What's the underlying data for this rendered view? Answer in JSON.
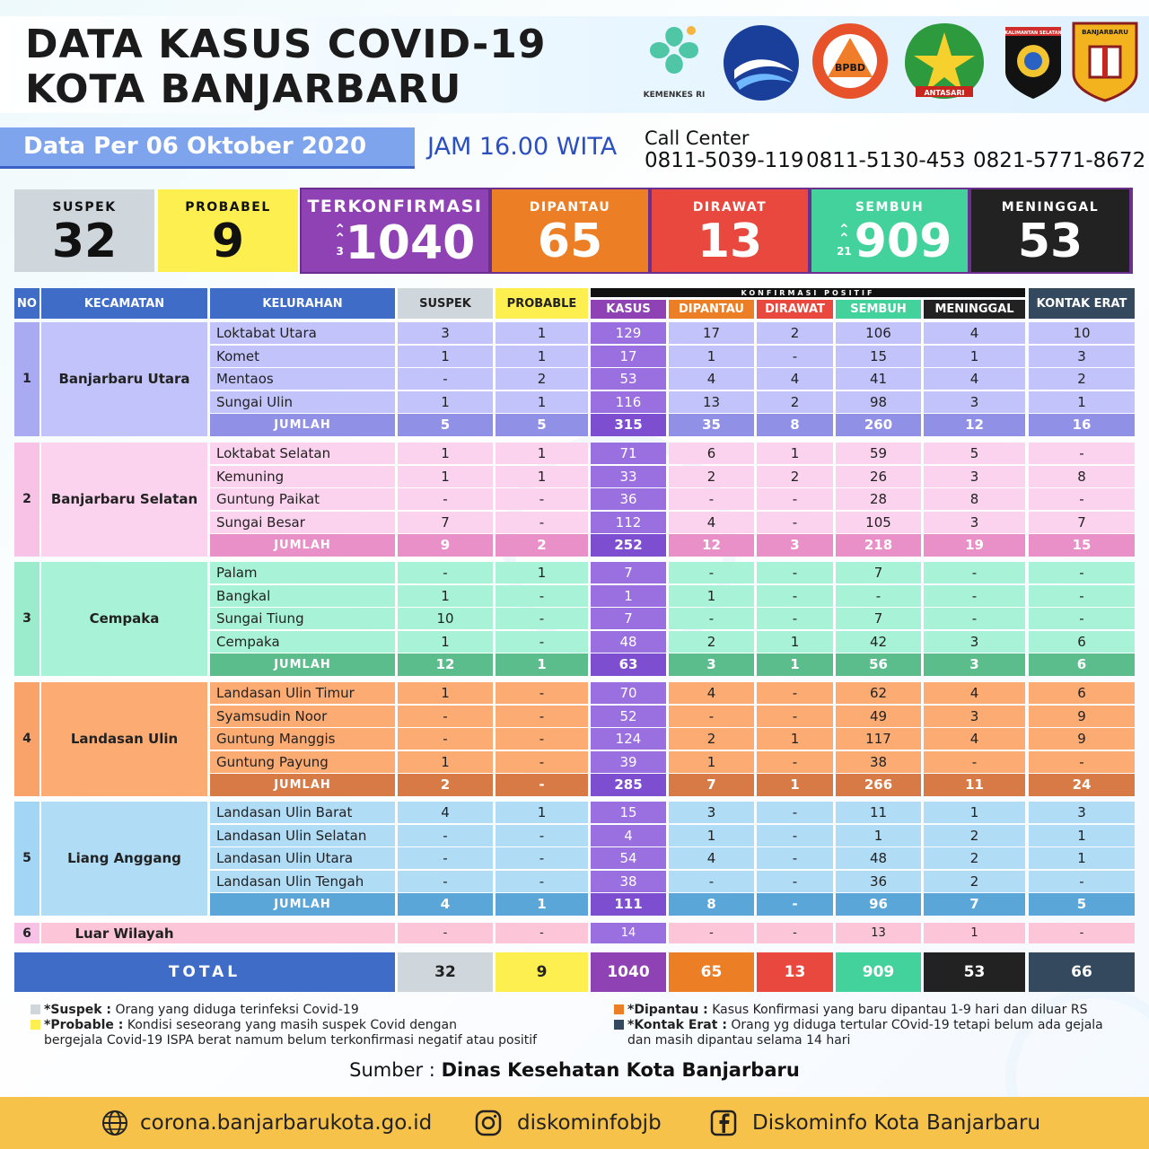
{
  "header": {
    "title_line1": "DATA KASUS COVID-19",
    "title_line2": "KOTA BANJARBARU",
    "logos": [
      {
        "name": "kemenkes-logo",
        "text": "KEMENKES RI"
      },
      {
        "name": "kominfo-logo",
        "text": ""
      },
      {
        "name": "bpbd-logo",
        "text": "BPBD"
      },
      {
        "name": "antasari-logo",
        "text": "ANTASARI"
      },
      {
        "name": "polda-logo",
        "text": "KALIMANTAN SELATAN"
      },
      {
        "name": "banjarbaru-logo",
        "text": "BANJARBARU"
      }
    ],
    "date": "Data Per 06 Oktober 2020",
    "time": "JAM 16.00 WITA",
    "call_center_label": "Call Center",
    "phones": [
      "0811-5039-119",
      "0811-5130-453",
      "0821-5771-8672"
    ]
  },
  "summary": [
    {
      "label": "SUSPEK",
      "value": "32",
      "bg": "#cfd6dc",
      "fg": "#111111",
      "up": ""
    },
    {
      "label": "PROBABEL",
      "value": "9",
      "bg": "#fcef4f",
      "fg": "#111111",
      "up": ""
    },
    {
      "label": "TERKONFIRMASI",
      "value": "1040",
      "bg": "#8e42b3",
      "fg": "#ffffff",
      "up": "3"
    },
    {
      "label": "DIPANTAU",
      "value": "65",
      "bg": "#ec7e25",
      "fg": "#ffffff",
      "up": ""
    },
    {
      "label": "DIRAWAT",
      "value": "13",
      "bg": "#e9483e",
      "fg": "#ffffff",
      "up": ""
    },
    {
      "label": "SEMBUH",
      "value": "909",
      "bg": "#43d29c",
      "fg": "#ffffff",
      "up": "21"
    },
    {
      "label": "MENINGGAL",
      "value": "53",
      "bg": "#222222",
      "fg": "#ffffff",
      "up": ""
    }
  ],
  "table": {
    "headers": {
      "no": "NO",
      "kecamatan": "KECAMATAN",
      "kelurahan": "KELURAHAN",
      "suspek": "SUSPEK",
      "probable": "PROBABLE",
      "group": "KONFIRMASI POSITIF",
      "kasus": "KASUS",
      "dipantau": "DIPANTAU",
      "dirawat": "DIRAWAT",
      "sembuh": "SEMBUH",
      "meninggal": "MENINGGAL",
      "kontak": "KONTAK ERAT"
    },
    "jumlah_label": "JUMLAH",
    "districts": [
      {
        "no": "1",
        "name": "Banjarbaru Utara",
        "colors": {
          "row": "#c2c3fb",
          "num": "#a9aaf2",
          "total": "#8f90e6",
          "kasus": "#9a6fe0",
          "kasustotal": "#7e4ed0"
        },
        "rows": [
          [
            "Loktabat Utara",
            "3",
            "1",
            "129",
            "17",
            "2",
            "106",
            "4",
            "10"
          ],
          [
            "Komet",
            "1",
            "1",
            "17",
            "1",
            "-",
            "15",
            "1",
            "3"
          ],
          [
            "Mentaos",
            "-",
            "2",
            "53",
            "4",
            "4",
            "41",
            "4",
            "2"
          ],
          [
            "Sungai Ulin",
            "1",
            "1",
            "116",
            "13",
            "2",
            "98",
            "3",
            "1"
          ]
        ],
        "total": [
          "5",
          "5",
          "315",
          "35",
          "8",
          "260",
          "12",
          "16"
        ]
      },
      {
        "no": "2",
        "name": "Banjarbaru Selatan",
        "colors": {
          "row": "#fcd3ee",
          "num": "#f8c2e6",
          "total": "#e990c9",
          "kasus": "#9a6fe0",
          "kasustotal": "#7e4ed0"
        },
        "rows": [
          [
            "Loktabat Selatan",
            "1",
            "1",
            "71",
            "6",
            "1",
            "59",
            "5",
            "-"
          ],
          [
            "Kemuning",
            "1",
            "1",
            "33",
            "2",
            "2",
            "26",
            "3",
            "8"
          ],
          [
            "Guntung Paikat",
            "-",
            "-",
            "36",
            "-",
            "-",
            "28",
            "8",
            "-"
          ],
          [
            "Sungai Besar",
            "7",
            "-",
            "112",
            "4",
            "-",
            "105",
            "3",
            "7"
          ]
        ],
        "total": [
          "9",
          "2",
          "252",
          "12",
          "3",
          "218",
          "19",
          "15"
        ]
      },
      {
        "no": "3",
        "name": "Cempaka",
        "colors": {
          "row": "#a8f3d8",
          "num": "#9aeccd",
          "total": "#5cbd8c",
          "kasus": "#9a6fe0",
          "kasustotal": "#7e4ed0"
        },
        "rows": [
          [
            "Palam",
            "-",
            "1",
            "7",
            "-",
            "-",
            "7",
            "-",
            "-"
          ],
          [
            "Bangkal",
            "1",
            "-",
            "1",
            "1",
            "-",
            "-",
            "-",
            "-"
          ],
          [
            "Sungai Tiung",
            "10",
            "-",
            "7",
            "-",
            "-",
            "7",
            "-",
            "-"
          ],
          [
            "Cempaka",
            "1",
            "-",
            "48",
            "2",
            "1",
            "42",
            "3",
            "6"
          ]
        ],
        "total": [
          "12",
          "1",
          "63",
          "3",
          "1",
          "56",
          "3",
          "6"
        ]
      },
      {
        "no": "4",
        "name": "Landasan Ulin",
        "colors": {
          "row": "#fcab73",
          "num": "#f9a36a",
          "total": "#d77a45",
          "kasus": "#9a6fe0",
          "kasustotal": "#7e4ed0"
        },
        "rows": [
          [
            "Landasan Ulin Timur",
            "1",
            "-",
            "70",
            "4",
            "-",
            "62",
            "4",
            "6"
          ],
          [
            "Syamsudin Noor",
            "-",
            "-",
            "52",
            "-",
            "-",
            "49",
            "3",
            "9"
          ],
          [
            "Guntung Manggis",
            "-",
            "-",
            "124",
            "2",
            "1",
            "117",
            "4",
            "9"
          ],
          [
            "Guntung Payung",
            "1",
            "-",
            "39",
            "1",
            "-",
            "38",
            "-",
            "-"
          ]
        ],
        "total": [
          "2",
          "-",
          "285",
          "7",
          "1",
          "266",
          "11",
          "24"
        ]
      },
      {
        "no": "5",
        "name": "Liang Anggang",
        "colors": {
          "row": "#b0dcf6",
          "num": "#a3d5f4",
          "total": "#5aa6d8",
          "kasus": "#9a6fe0",
          "kasustotal": "#7e4ed0"
        },
        "rows": [
          [
            "Landasan Ulin Barat",
            "4",
            "1",
            "15",
            "3",
            "-",
            "11",
            "1",
            "3"
          ],
          [
            "Landasan Ulin Selatan",
            "-",
            "-",
            "4",
            "1",
            "-",
            "1",
            "2",
            "1"
          ],
          [
            "Landasan Ulin Utara",
            "-",
            "-",
            "54",
            "4",
            "-",
            "48",
            "2",
            "1"
          ],
          [
            "Landasan Ulin Tengah",
            "-",
            "-",
            "38",
            "-",
            "-",
            "36",
            "2",
            "-"
          ]
        ],
        "total": [
          "4",
          "1",
          "111",
          "8",
          "-",
          "96",
          "7",
          "5"
        ]
      }
    ],
    "luar": {
      "no": "6",
      "name": "Luar Wilayah",
      "values": [
        "-",
        "-",
        "14",
        "-",
        "-",
        "13",
        "1",
        "-"
      ]
    },
    "total_label": "TOTAL",
    "total": [
      "32",
      "9",
      "1040",
      "65",
      "13",
      "909",
      "53",
      "66"
    ]
  },
  "legend": {
    "suspek_term": "*Suspek :",
    "suspek_text": " Orang yang diduga terinfeksi Covid-19",
    "probable_term": "*Probable :",
    "probable_text": " Kondisi seseorang yang masih suspek Covid dengan",
    "probable_text2": "bergejala Covid-19 ISPA berat namum belum terkonfirmasi negatif atau positif",
    "dipantau_term": "*Dipantau :",
    "dipantau_text": " Kasus Konfirmasi yang baru dipantau 1-9 hari dan diluar RS",
    "kontak_term": "*Kontak Erat :",
    "kontak_text": " Orang yg diduga tertular COvid-19 tetapi belum ada gejala",
    "kontak_text2": "dan masih dipantau selama 14 hari"
  },
  "source": {
    "label": "Sumber : ",
    "value": "Dinas Kesehatan Kota Banjarbaru"
  },
  "footer": {
    "website": "corona.banjarbarukota.go.id",
    "instagram": "diskominfobjb",
    "facebook": "Diskominfo Kota Banjarbaru"
  },
  "colors": {
    "header_blue": "#3f6cc6",
    "suspek": "#cfd6dc",
    "probable": "#fcef4f",
    "kasus": "#8e42b3",
    "dipantau": "#ec7e25",
    "dirawat": "#e9483e",
    "sembuh": "#43d29c",
    "meninggal": "#222222",
    "kontak": "#34495e",
    "footer": "#f7c24a"
  }
}
